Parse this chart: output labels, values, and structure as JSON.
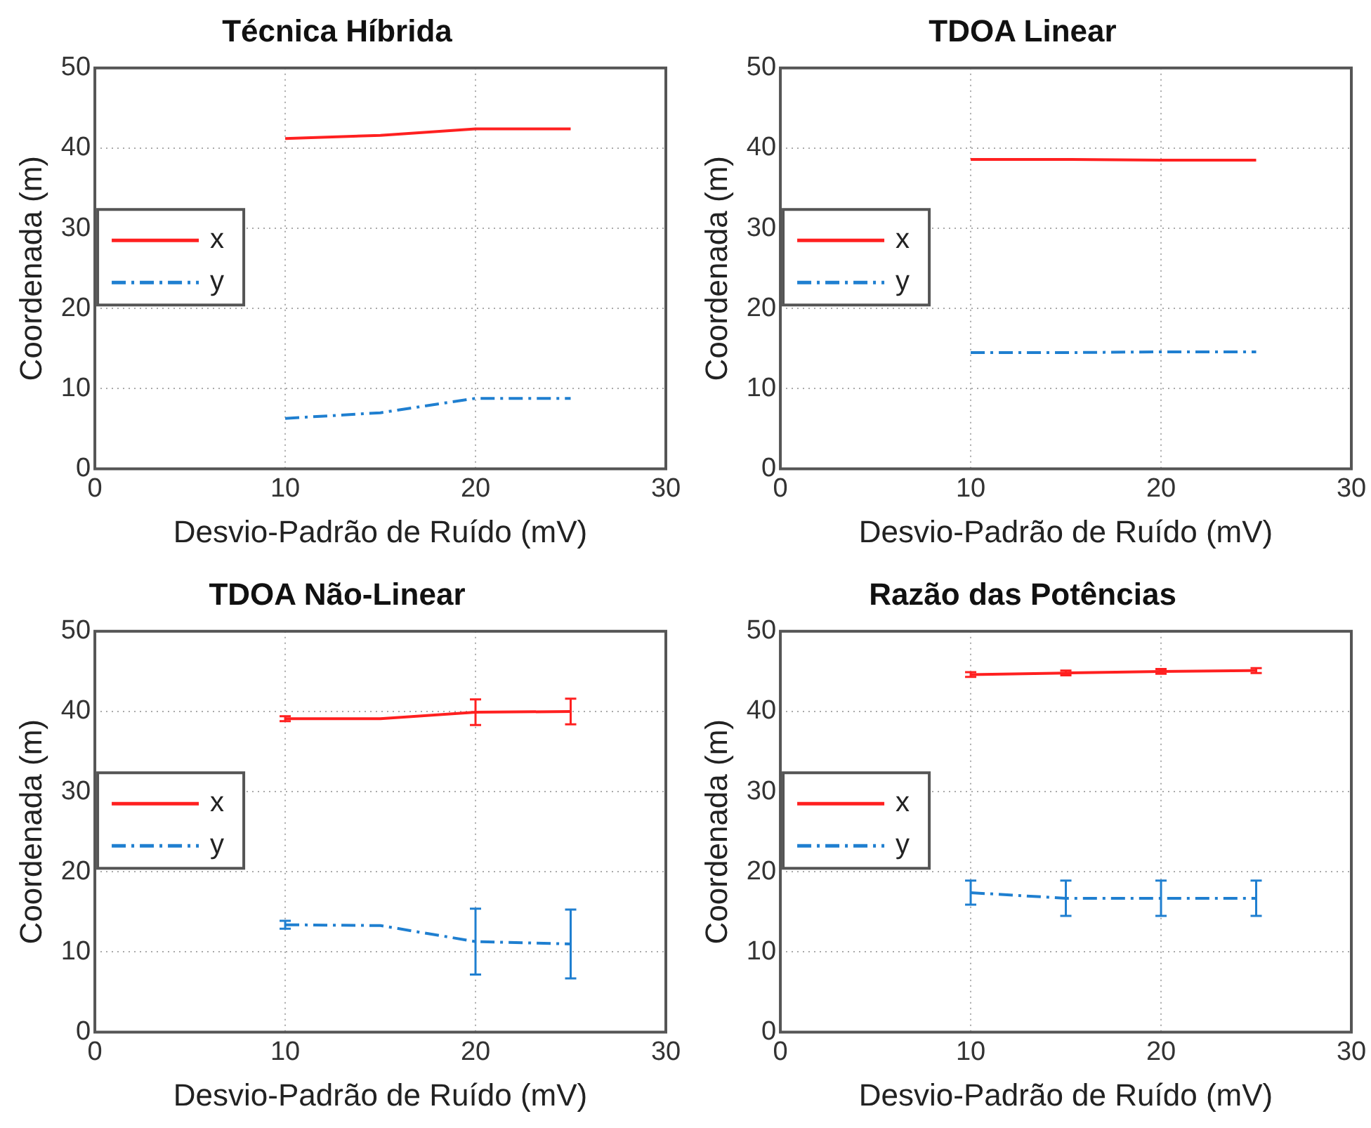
{
  "chart_data": [
    {
      "type": "line",
      "title": "Técnica Híbrida",
      "xlabel": "Desvio-Padrão de Ruído (mV)",
      "ylabel": "Coordenada (m)",
      "x": [
        10,
        15,
        20,
        25
      ],
      "xlim": [
        0,
        30
      ],
      "xticks": [
        0,
        10,
        20,
        30
      ],
      "ylim": [
        0,
        50
      ],
      "yticks": [
        0,
        10,
        20,
        30,
        40,
        50
      ],
      "grid": true,
      "legend": "left",
      "series": [
        {
          "name": "x",
          "color": "#ff2020",
          "line_style": "solid",
          "values": [
            41.2,
            41.6,
            42.4,
            42.4
          ]
        },
        {
          "name": "y",
          "color": "#1f7fd0",
          "line_style": "dashed",
          "values": [
            6.3,
            7.0,
            8.8,
            8.8
          ]
        }
      ]
    },
    {
      "type": "line",
      "title": "TDOA Linear",
      "xlabel": "Desvio-Padrão de Ruído (mV)",
      "ylabel": "Coordenada (m)",
      "x": [
        10,
        15,
        20,
        25
      ],
      "xlim": [
        0,
        30
      ],
      "xticks": [
        0,
        10,
        20,
        30
      ],
      "ylim": [
        0,
        50
      ],
      "yticks": [
        0,
        10,
        20,
        30,
        40,
        50
      ],
      "grid": true,
      "legend": "left",
      "series": [
        {
          "name": "x",
          "color": "#ff2020",
          "line_style": "solid",
          "values": [
            38.6,
            38.6,
            38.5,
            38.5
          ]
        },
        {
          "name": "y",
          "color": "#1f7fd0",
          "line_style": "dashed",
          "values": [
            14.5,
            14.5,
            14.6,
            14.6
          ]
        }
      ]
    },
    {
      "type": "line",
      "title": "TDOA Não-Linear",
      "xlabel": "Desvio-Padrão de Ruído (mV)",
      "ylabel": "Coordenada (m)",
      "x": [
        10,
        15,
        20,
        25
      ],
      "xlim": [
        0,
        30
      ],
      "xticks": [
        0,
        10,
        20,
        30
      ],
      "ylim": [
        0,
        50
      ],
      "yticks": [
        0,
        10,
        20,
        30,
        40,
        50
      ],
      "grid": true,
      "legend": "left",
      "series": [
        {
          "name": "x",
          "color": "#ff2020",
          "line_style": "solid",
          "values": [
            39.1,
            39.1,
            39.9,
            40.0
          ],
          "errors": [
            0.3,
            null,
            1.6,
            1.6
          ]
        },
        {
          "name": "y",
          "color": "#1f7fd0",
          "line_style": "dashed",
          "values": [
            13.4,
            13.3,
            11.3,
            11.0
          ],
          "errors": [
            0.5,
            null,
            4.1,
            4.3
          ]
        }
      ]
    },
    {
      "type": "line",
      "title": "Razão das Potências",
      "xlabel": "Desvio-Padrão de Ruído (mV)",
      "ylabel": "Coordenada (m)",
      "x": [
        10,
        15,
        20,
        25
      ],
      "xlim": [
        0,
        30
      ],
      "xticks": [
        0,
        10,
        20,
        30
      ],
      "ylim": [
        0,
        50
      ],
      "yticks": [
        0,
        10,
        20,
        30,
        40,
        50
      ],
      "grid": true,
      "legend": "left",
      "series": [
        {
          "name": "x",
          "color": "#ff2020",
          "line_style": "solid",
          "values": [
            44.6,
            44.8,
            45.0,
            45.1
          ],
          "errors": [
            0.3,
            0.3,
            0.3,
            0.3
          ]
        },
        {
          "name": "y",
          "color": "#1f7fd0",
          "line_style": "dashed",
          "values": [
            17.4,
            16.7,
            16.7,
            16.7
          ],
          "errors": [
            1.5,
            2.2,
            2.2,
            2.2
          ]
        }
      ]
    }
  ]
}
